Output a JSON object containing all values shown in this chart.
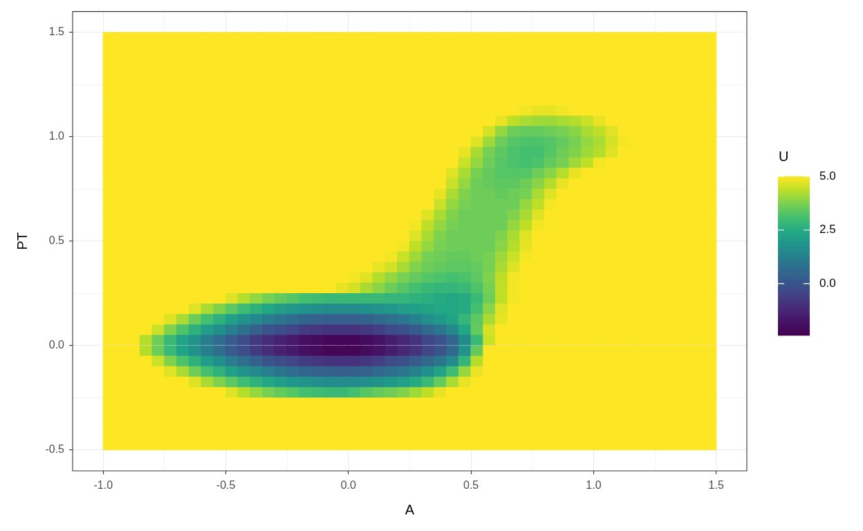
{
  "chart_data": {
    "type": "heatmap",
    "xlabel": "A",
    "ylabel": "PT",
    "clabel": "U",
    "xlim": [
      -1.125,
      1.625
    ],
    "ylim": [
      -0.6,
      1.6
    ],
    "xticks": [
      {
        "value": -1,
        "label": "-1.0"
      },
      {
        "value": -0.75,
        "label": null
      },
      {
        "value": -0.5,
        "label": "-0.5"
      },
      {
        "value": -0.25,
        "label": null
      },
      {
        "value": 0,
        "label": "0.0"
      },
      {
        "value": 0.25,
        "label": null
      },
      {
        "value": 0.5,
        "label": "0.5"
      },
      {
        "value": 0.75,
        "label": null
      },
      {
        "value": 1,
        "label": "1.0"
      },
      {
        "value": 1.25,
        "label": null
      },
      {
        "value": 1.5,
        "label": "1.5"
      }
    ],
    "yticks": [
      {
        "value": -0.5,
        "label": "-0.5"
      },
      {
        "value": -0.25,
        "label": null
      },
      {
        "value": 0,
        "label": "0.0"
      },
      {
        "value": 0.25,
        "label": null
      },
      {
        "value": 0.5,
        "label": "0.5"
      },
      {
        "value": 0.75,
        "label": null
      },
      {
        "value": 1,
        "label": "1.0"
      },
      {
        "value": 1.25,
        "label": null
      },
      {
        "value": 1.5,
        "label": "1.5"
      }
    ],
    "grid": true,
    "clim": [
      -2.4,
      5
    ],
    "cticks": [
      {
        "value": 0,
        "label": "0.0"
      },
      {
        "value": 2.5,
        "label": "2.5"
      },
      {
        "value": 5,
        "label": "5.0"
      }
    ],
    "x": [
      -0.975,
      -0.925,
      -0.875,
      -0.825,
      -0.775,
      -0.725,
      -0.675,
      -0.625,
      -0.575,
      -0.525,
      -0.475,
      -0.425,
      -0.375,
      -0.325,
      -0.275,
      -0.225,
      -0.175,
      -0.125,
      -0.075,
      -0.025,
      0.025,
      0.075,
      0.125,
      0.175,
      0.225,
      0.275,
      0.325,
      0.375,
      0.425,
      0.475,
      0.525,
      0.575,
      0.625,
      0.675,
      0.725,
      0.775,
      0.825,
      0.875,
      0.925,
      0.975,
      1.025,
      1.075,
      1.125,
      1.175,
      1.225,
      1.275,
      1.325,
      1.375,
      1.425,
      1.475
    ],
    "y": [
      1.475,
      1.425,
      1.375,
      1.325,
      1.275,
      1.225,
      1.175,
      1.125,
      1.075,
      1.025,
      0.975,
      0.925,
      0.875,
      0.825,
      0.775,
      0.725,
      0.675,
      0.625,
      0.575,
      0.525,
      0.475,
      0.425,
      0.375,
      0.325,
      0.275,
      0.225,
      0.175,
      0.125,
      0.075,
      0.025,
      -0.025,
      -0.075,
      -0.125,
      -0.175,
      -0.225,
      -0.275,
      -0.325,
      -0.375,
      -0.425,
      -0.475
    ],
    "cells": [
      [
        5,
        5,
        5,
        5,
        5,
        5,
        5,
        5,
        5,
        5,
        5,
        5,
        5,
        5,
        5,
        5,
        5,
        5,
        5,
        5,
        5,
        5,
        5,
        5,
        5,
        5,
        5,
        5,
        5,
        5,
        5,
        5,
        5,
        5,
        5,
        5,
        5,
        5,
        5,
        5,
        5,
        5,
        5,
        5,
        5,
        5,
        5,
        5,
        5,
        5
      ],
      [
        5,
        5,
        5,
        5,
        5,
        5,
        5,
        5,
        5,
        5,
        5,
        5,
        5,
        5,
        5,
        5,
        5,
        5,
        5,
        5,
        5,
        5,
        5,
        5,
        5,
        5,
        5,
        5,
        5,
        5,
        5,
        5,
        5,
        5,
        5,
        5,
        5,
        5,
        5,
        5,
        5,
        5,
        5,
        5,
        5,
        5,
        5,
        5,
        5,
        5
      ],
      [
        5,
        5,
        5,
        5,
        5,
        5,
        5,
        5,
        5,
        5,
        5,
        5,
        5,
        5,
        5,
        5,
        5,
        5,
        5,
        5,
        5,
        5,
        5,
        5,
        5,
        5,
        5,
        5,
        5,
        5,
        5,
        5,
        5,
        5,
        5,
        5,
        5,
        5,
        5,
        5,
        5,
        5,
        5,
        5,
        5,
        5,
        5,
        5,
        5,
        5
      ],
      [
        5,
        5,
        5,
        5,
        5,
        5,
        5,
        5,
        5,
        5,
        5,
        5,
        5,
        5,
        5,
        5,
        5,
        5,
        5,
        5,
        5,
        5,
        5,
        5,
        5,
        5,
        5,
        5,
        5,
        5,
        5,
        5,
        5,
        5,
        5,
        5,
        5,
        5,
        5,
        5,
        5,
        5,
        5,
        5,
        5,
        5,
        5,
        5,
        5,
        5
      ],
      [
        5,
        5,
        5,
        5,
        5,
        5,
        5,
        5,
        5,
        5,
        5,
        5,
        5,
        5,
        5,
        5,
        5,
        5,
        5,
        5,
        5,
        5,
        5,
        5,
        5,
        5,
        5,
        5,
        5,
        5,
        5,
        5,
        5,
        5,
        5,
        5,
        5,
        5,
        5,
        5,
        5,
        5,
        5,
        5,
        5,
        5,
        5,
        5,
        5,
        5
      ],
      [
        5,
        5,
        5,
        5,
        5,
        5,
        5,
        5,
        5,
        5,
        5,
        5,
        5,
        5,
        5,
        5,
        5,
        5,
        5,
        5,
        5,
        5,
        5,
        5,
        5,
        5,
        5,
        5,
        5,
        5,
        5,
        5,
        5,
        5,
        5,
        5,
        5,
        5,
        5,
        5,
        5,
        5,
        5,
        5,
        5,
        5,
        5,
        5,
        5,
        5
      ],
      [
        5,
        5,
        5,
        5,
        5,
        5,
        5,
        5,
        5,
        5,
        5,
        5,
        5,
        5,
        5,
        5,
        5,
        5,
        5,
        5,
        5,
        5,
        5,
        5,
        5,
        5,
        5,
        5,
        5,
        5,
        5,
        5,
        5,
        5,
        5,
        5,
        5,
        5,
        5,
        5,
        5,
        5,
        5,
        5,
        5,
        5,
        5,
        5,
        5,
        5
      ],
      [
        5,
        5,
        5,
        5,
        5,
        5,
        5,
        5,
        5,
        5,
        5,
        5,
        5,
        5,
        5,
        5,
        5,
        5,
        5,
        5,
        5,
        5,
        5,
        5,
        5,
        5,
        5,
        5,
        5,
        5,
        5,
        5,
        5,
        5,
        4.9,
        4.8,
        4.8,
        4.9,
        5,
        5,
        5,
        5,
        5,
        5,
        5,
        5,
        5,
        5,
        5,
        5
      ],
      [
        5,
        5,
        5,
        5,
        5,
        5,
        5,
        5,
        5,
        5,
        5,
        5,
        5,
        5,
        5,
        5,
        5,
        5,
        5,
        5,
        5,
        5,
        5,
        5,
        5,
        5,
        5,
        5,
        5,
        5,
        5,
        5,
        4.8,
        4.4,
        4.2,
        4.1,
        4.1,
        4.2,
        4.3,
        4.5,
        4.8,
        5,
        5,
        5,
        5,
        5,
        5,
        5,
        5,
        5
      ],
      [
        5,
        5,
        5,
        5,
        5,
        5,
        5,
        5,
        5,
        5,
        5,
        5,
        5,
        5,
        5,
        5,
        5,
        5,
        5,
        5,
        5,
        5,
        5,
        5,
        5,
        5,
        5,
        5,
        5,
        5,
        5,
        4.6,
        4.0,
        3.6,
        3.5,
        3.5,
        3.6,
        3.7,
        3.9,
        4.2,
        4.4,
        4.7,
        5,
        5,
        5,
        5,
        5,
        5,
        5,
        5
      ],
      [
        5,
        5,
        5,
        5,
        5,
        5,
        5,
        5,
        5,
        5,
        5,
        5,
        5,
        5,
        5,
        5,
        5,
        5,
        5,
        5,
        5,
        5,
        5,
        5,
        5,
        5,
        5,
        5,
        5,
        5,
        4.7,
        4.1,
        3.6,
        3.3,
        3.2,
        3.2,
        3.3,
        3.5,
        3.7,
        4.0,
        4.2,
        4.6,
        4.9,
        5,
        5,
        5,
        5,
        5,
        5,
        5
      ],
      [
        5,
        5,
        5,
        5,
        5,
        5,
        5,
        5,
        5,
        5,
        5,
        5,
        5,
        5,
        5,
        5,
        5,
        5,
        5,
        5,
        5,
        5,
        5,
        5,
        5,
        5,
        5,
        5,
        5,
        4.8,
        4.2,
        3.7,
        3.4,
        3.2,
        3.1,
        3.1,
        3.3,
        3.6,
        3.8,
        4.1,
        4.3,
        4.7,
        5,
        5,
        5,
        5,
        5,
        5,
        5,
        5
      ],
      [
        5,
        5,
        5,
        5,
        5,
        5,
        5,
        5,
        5,
        5,
        5,
        5,
        5,
        5,
        5,
        5,
        5,
        5,
        5,
        5,
        5,
        5,
        5,
        5,
        5,
        5,
        5,
        5,
        5,
        4.5,
        4.0,
        3.6,
        3.3,
        3.2,
        3.1,
        3.2,
        3.5,
        3.7,
        4.1,
        4.4,
        4.9,
        5,
        5,
        5,
        5,
        5,
        5,
        5,
        5,
        5
      ],
      [
        5,
        5,
        5,
        5,
        5,
        5,
        5,
        5,
        5,
        5,
        5,
        5,
        5,
        5,
        5,
        5,
        5,
        5,
        5,
        5,
        5,
        5,
        5,
        5,
        5,
        5,
        5,
        5,
        4.7,
        4.2,
        3.7,
        3.5,
        3.3,
        3.3,
        3.3,
        3.6,
        3.9,
        4.3,
        4.8,
        5,
        5,
        5,
        5,
        5,
        5,
        5,
        5,
        5,
        5,
        5
      ],
      [
        5,
        5,
        5,
        5,
        5,
        5,
        5,
        5,
        5,
        5,
        5,
        5,
        5,
        5,
        5,
        5,
        5,
        5,
        5,
        5,
        5,
        5,
        5,
        5,
        5,
        5,
        5,
        5,
        4.5,
        4.0,
        3.6,
        3.5,
        3.4,
        3.4,
        3.6,
        3.9,
        4.3,
        4.8,
        5,
        5,
        5,
        5,
        5,
        5,
        5,
        5,
        5,
        5,
        5,
        5
      ],
      [
        5,
        5,
        5,
        5,
        5,
        5,
        5,
        5,
        5,
        5,
        5,
        5,
        5,
        5,
        5,
        5,
        5,
        5,
        5,
        5,
        5,
        5,
        5,
        5,
        5,
        5,
        5,
        4.8,
        4.2,
        3.8,
        3.6,
        3.6,
        3.5,
        3.6,
        3.7,
        4.2,
        4.7,
        5,
        5,
        5,
        5,
        5,
        5,
        5,
        5,
        5,
        5,
        5,
        5,
        5
      ],
      [
        5,
        5,
        5,
        5,
        5,
        5,
        5,
        5,
        5,
        5,
        5,
        5,
        5,
        5,
        5,
        5,
        5,
        5,
        5,
        5,
        5,
        5,
        5,
        5,
        5,
        5,
        5,
        4.5,
        4.0,
        3.7,
        3.6,
        3.6,
        3.6,
        3.6,
        4.0,
        4.4,
        4.9,
        5,
        5,
        5,
        5,
        5,
        5,
        5,
        5,
        5,
        5,
        5,
        5,
        5
      ],
      [
        5,
        5,
        5,
        5,
        5,
        5,
        5,
        5,
        5,
        5,
        5,
        5,
        5,
        5,
        5,
        5,
        5,
        5,
        5,
        5,
        5,
        5,
        5,
        5,
        5,
        5,
        4.7,
        4.2,
        3.8,
        3.6,
        3.6,
        3.6,
        3.6,
        3.8,
        4.2,
        4.7,
        5,
        5,
        5,
        5,
        5,
        5,
        5,
        5,
        5,
        5,
        5,
        5,
        5,
        5
      ],
      [
        5,
        5,
        5,
        5,
        5,
        5,
        5,
        5,
        5,
        5,
        5,
        5,
        5,
        5,
        5,
        5,
        5,
        5,
        5,
        5,
        5,
        5,
        5,
        5,
        5,
        4.9,
        4.4,
        4.0,
        3.7,
        3.6,
        3.6,
        3.6,
        3.6,
        4.0,
        4.4,
        4.9,
        5,
        5,
        5,
        5,
        5,
        5,
        5,
        5,
        5,
        5,
        5,
        5,
        5,
        5
      ],
      [
        5,
        5,
        5,
        5,
        5,
        5,
        5,
        5,
        5,
        5,
        5,
        5,
        5,
        5,
        5,
        5,
        5,
        5,
        5,
        5,
        5,
        5,
        5,
        5,
        5,
        4.7,
        4.2,
        3.8,
        3.6,
        3.6,
        3.6,
        3.6,
        3.8,
        4.2,
        4.7,
        5,
        5,
        5,
        5,
        5,
        5,
        5,
        5,
        5,
        5,
        5,
        5,
        5,
        5,
        5
      ],
      [
        5,
        5,
        5,
        5,
        5,
        5,
        5,
        5,
        5,
        5,
        5,
        5,
        5,
        5,
        5,
        5,
        5,
        5,
        5,
        5,
        5,
        5,
        5,
        5,
        4.9,
        4.4,
        4.0,
        3.7,
        3.6,
        3.6,
        3.6,
        3.6,
        3.9,
        4.3,
        4.8,
        5,
        5,
        5,
        5,
        5,
        5,
        5,
        5,
        5,
        5,
        5,
        5,
        5,
        5,
        5
      ],
      [
        5,
        5,
        5,
        5,
        5,
        5,
        5,
        5,
        5,
        5,
        5,
        5,
        5,
        5,
        5,
        5,
        5,
        5,
        5,
        5,
        5,
        5,
        5,
        4.9,
        4.5,
        4.1,
        3.7,
        3.6,
        3.5,
        3.5,
        3.6,
        3.7,
        4.1,
        4.5,
        4.9,
        5,
        5,
        5,
        5,
        5,
        5,
        5,
        5,
        5,
        5,
        5,
        5,
        5,
        5,
        5
      ],
      [
        5,
        5,
        5,
        5,
        5,
        5,
        5,
        5,
        5,
        5,
        5,
        5,
        5,
        5,
        5,
        5,
        5,
        5,
        5,
        5,
        5,
        5,
        4.8,
        4.6,
        4.2,
        3.8,
        3.6,
        3.5,
        3.4,
        3.4,
        3.5,
        3.7,
        4.2,
        4.7,
        5,
        5,
        5,
        5,
        5,
        5,
        5,
        5,
        5,
        5,
        5,
        5,
        5,
        5,
        5,
        5
      ],
      [
        5,
        5,
        5,
        5,
        5,
        5,
        5,
        5,
        5,
        5,
        5,
        5,
        5,
        5,
        5,
        5,
        5,
        5,
        5,
        5,
        4.9,
        4.7,
        4.3,
        4.0,
        3.7,
        3.5,
        3.3,
        3.2,
        3.1,
        3.2,
        3.4,
        3.8,
        4.4,
        4.9,
        5,
        5,
        5,
        5,
        5,
        5,
        5,
        5,
        5,
        5,
        5,
        5,
        5,
        5,
        5,
        5
      ],
      [
        5,
        5,
        5,
        5,
        5,
        5,
        5,
        5,
        5,
        5,
        5,
        5,
        5,
        5,
        5,
        5,
        5,
        5,
        5,
        4.8,
        4.6,
        4.2,
        3.9,
        3.6,
        3.3,
        3.1,
        2.9,
        2.8,
        2.8,
        2.9,
        3.2,
        3.7,
        4.4,
        4.9,
        5,
        5,
        5,
        5,
        5,
        5,
        5,
        5,
        5,
        5,
        5,
        5,
        5,
        5,
        5,
        5
      ],
      [
        5,
        5,
        5,
        5,
        5,
        5,
        5,
        5,
        5,
        5,
        4.7,
        4.3,
        4.0,
        3.7,
        3.5,
        3.3,
        3.1,
        3.0,
        2.9,
        2.9,
        2.9,
        2.9,
        2.9,
        2.8,
        2.8,
        2.7,
        2.6,
        2.5,
        2.4,
        2.5,
        2.9,
        3.6,
        4.4,
        4.9,
        5,
        5,
        5,
        5,
        5,
        5,
        5,
        5,
        5,
        5,
        5,
        5,
        5,
        5,
        5,
        5
      ],
      [
        5,
        5,
        5,
        5,
        5,
        5,
        5,
        4.7,
        4.2,
        3.8,
        3.4,
        3.0,
        2.7,
        2.4,
        2.1,
        1.9,
        1.8,
        1.7,
        1.6,
        1.6,
        1.6,
        1.7,
        1.8,
        1.9,
        2.1,
        2.2,
        2.3,
        2.4,
        2.4,
        2.5,
        3.1,
        3.9,
        4.7,
        5,
        5,
        5,
        5,
        5,
        5,
        5,
        5,
        5,
        5,
        5,
        5,
        5,
        5,
        5,
        5,
        5
      ],
      [
        5,
        5,
        5,
        5,
        5,
        4.7,
        4.2,
        3.6,
        3.1,
        2.7,
        2.2,
        1.8,
        1.5,
        1.2,
        0.9,
        0.7,
        0.5,
        0.4,
        0.3,
        0.3,
        0.3,
        0.4,
        0.6,
        0.8,
        1.0,
        1.3,
        1.7,
        2.0,
        2.3,
        2.8,
        3.4,
        4.2,
        4.8,
        5,
        5,
        5,
        5,
        5,
        5,
        5,
        5,
        5,
        5,
        5,
        5,
        5,
        5,
        5,
        5,
        5
      ],
      [
        5,
        5,
        5,
        5,
        4.5,
        3.8,
        3.2,
        2.7,
        2.1,
        1.7,
        1.2,
        0.8,
        0.4,
        0.0,
        -0.2,
        -0.4,
        -0.7,
        -0.8,
        -0.9,
        -0.9,
        -0.9,
        -0.8,
        -0.6,
        -0.3,
        -0.1,
        0.2,
        0.6,
        1.0,
        1.5,
        2.4,
        3.5,
        4.6,
        5,
        5,
        5,
        5,
        5,
        5,
        5,
        5,
        5,
        5,
        5,
        5,
        5,
        5,
        5,
        5,
        5,
        5
      ],
      [
        5,
        5,
        5,
        4.3,
        3.6,
        2.9,
        2.3,
        1.8,
        1.2,
        0.7,
        0.2,
        -0.2,
        -0.7,
        -1.1,
        -1.4,
        -1.6,
        -1.9,
        -2.0,
        -2.2,
        -2.2,
        -2.2,
        -2.0,
        -1.8,
        -1.5,
        -1.2,
        -0.9,
        -0.4,
        0.0,
        0.5,
        1.6,
        2.9,
        4.5,
        5,
        5,
        5,
        5,
        5,
        5,
        5,
        5,
        5,
        5,
        5,
        5,
        5,
        5,
        5,
        5,
        5,
        5
      ],
      [
        5,
        5,
        5,
        4.3,
        3.6,
        2.9,
        2.3,
        1.8,
        1.2,
        0.7,
        0.2,
        -0.2,
        -0.7,
        -1.1,
        -1.4,
        -1.6,
        -1.9,
        -2.0,
        -2.2,
        -2.2,
        -2.2,
        -2.0,
        -1.8,
        -1.5,
        -1.2,
        -0.9,
        -0.4,
        0.0,
        0.6,
        1.8,
        3.5,
        5,
        5,
        5,
        5,
        5,
        5,
        5,
        5,
        5,
        5,
        5,
        5,
        5,
        5,
        5,
        5,
        5,
        5,
        5
      ],
      [
        5,
        5,
        5,
        5,
        4.5,
        3.8,
        3.2,
        2.7,
        2.1,
        1.7,
        1.2,
        0.8,
        0.4,
        0.0,
        -0.2,
        -0.4,
        -0.7,
        -0.8,
        -0.9,
        -0.9,
        -0.9,
        -0.8,
        -0.6,
        -0.3,
        -0.1,
        0.2,
        0.6,
        1.0,
        1.6,
        2.8,
        4.3,
        5,
        5,
        5,
        5,
        5,
        5,
        5,
        5,
        5,
        5,
        5,
        5,
        5,
        5,
        5,
        5,
        5,
        5,
        5
      ],
      [
        5,
        5,
        5,
        5,
        5,
        4.7,
        4.2,
        3.6,
        3.1,
        2.7,
        2.2,
        1.8,
        1.5,
        1.2,
        0.9,
        0.7,
        0.5,
        0.4,
        0.3,
        0.3,
        0.3,
        0.4,
        0.6,
        0.8,
        1.0,
        1.3,
        1.7,
        2.3,
        3.0,
        4.0,
        4.8,
        5,
        5,
        5,
        5,
        5,
        5,
        5,
        5,
        5,
        5,
        5,
        5,
        5,
        5,
        5,
        5,
        5,
        5,
        5
      ],
      [
        5,
        5,
        5,
        5,
        5,
        5,
        5,
        4.7,
        4.2,
        3.8,
        3.4,
        3.0,
        2.7,
        2.4,
        2.1,
        1.9,
        1.8,
        1.7,
        1.6,
        1.6,
        1.6,
        1.7,
        1.8,
        2.0,
        2.2,
        2.5,
        2.9,
        3.5,
        4.2,
        4.8,
        5,
        5,
        5,
        5,
        5,
        5,
        5,
        5,
        5,
        5,
        5,
        5,
        5,
        5,
        5,
        5,
        5,
        5,
        5,
        5
      ],
      [
        5,
        5,
        5,
        5,
        5,
        5,
        5,
        5,
        5,
        5,
        4.7,
        4.3,
        4.0,
        3.7,
        3.5,
        3.3,
        3.1,
        3.0,
        2.9,
        2.9,
        3.1,
        3.3,
        3.5,
        3.6,
        3.8,
        4.1,
        4.4,
        4.8,
        5,
        5,
        5,
        5,
        5,
        5,
        5,
        5,
        5,
        5,
        5,
        5,
        5,
        5,
        5,
        5,
        5,
        5,
        5,
        5,
        5,
        5
      ],
      [
        5,
        5,
        5,
        5,
        5,
        5,
        5,
        5,
        5,
        5,
        5,
        5,
        5,
        5,
        5,
        5,
        5,
        5,
        5,
        5,
        5,
        5,
        5,
        5,
        5,
        5,
        5,
        5,
        5,
        5,
        5,
        5,
        5,
        5,
        5,
        5,
        5,
        5,
        5,
        5,
        5,
        5,
        5,
        5,
        5,
        5,
        5,
        5,
        5,
        5
      ],
      [
        5,
        5,
        5,
        5,
        5,
        5,
        5,
        5,
        5,
        5,
        5,
        5,
        5,
        5,
        5,
        5,
        5,
        5,
        5,
        5,
        5,
        5,
        5,
        5,
        5,
        5,
        5,
        5,
        5,
        5,
        5,
        5,
        5,
        5,
        5,
        5,
        5,
        5,
        5,
        5,
        5,
        5,
        5,
        5,
        5,
        5,
        5,
        5,
        5,
        5
      ],
      [
        5,
        5,
        5,
        5,
        5,
        5,
        5,
        5,
        5,
        5,
        5,
        5,
        5,
        5,
        5,
        5,
        5,
        5,
        5,
        5,
        5,
        5,
        5,
        5,
        5,
        5,
        5,
        5,
        5,
        5,
        5,
        5,
        5,
        5,
        5,
        5,
        5,
        5,
        5,
        5,
        5,
        5,
        5,
        5,
        5,
        5,
        5,
        5,
        5,
        5
      ],
      [
        5,
        5,
        5,
        5,
        5,
        5,
        5,
        5,
        5,
        5,
        5,
        5,
        5,
        5,
        5,
        5,
        5,
        5,
        5,
        5,
        5,
        5,
        5,
        5,
        5,
        5,
        5,
        5,
        5,
        5,
        5,
        5,
        5,
        5,
        5,
        5,
        5,
        5,
        5,
        5,
        5,
        5,
        5,
        5,
        5,
        5,
        5,
        5,
        5,
        5
      ],
      [
        5,
        5,
        5,
        5,
        5,
        5,
        5,
        5,
        5,
        5,
        5,
        5,
        5,
        5,
        5,
        5,
        5,
        5,
        5,
        5,
        5,
        5,
        5,
        5,
        5,
        5,
        5,
        5,
        5,
        5,
        5,
        5,
        5,
        5,
        5,
        5,
        5,
        5,
        5,
        5,
        5,
        5,
        5,
        5,
        5,
        5,
        5,
        5,
        5,
        5
      ]
    ]
  }
}
